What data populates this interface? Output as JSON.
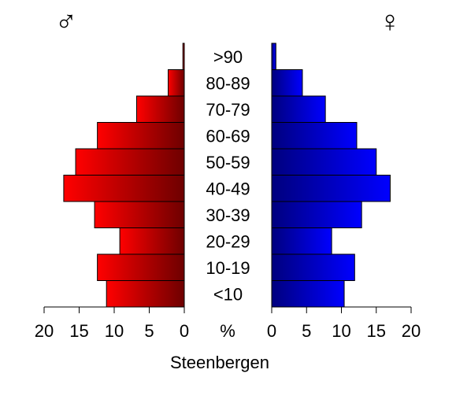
{
  "chart_data": {
    "type": "bar",
    "orientation": "horizontal",
    "layout": "population-pyramid",
    "title": "Steenbergen",
    "unit_label": "%",
    "male_symbol": "♂",
    "female_symbol": "♀",
    "categories": [
      "<10",
      "10-19",
      "20-29",
      "30-39",
      "40-49",
      "50-59",
      "60-69",
      "70-79",
      "80-89",
      ">90"
    ],
    "series": [
      {
        "name": "♂",
        "side": "left",
        "values": [
          11.1,
          12.4,
          9.2,
          12.8,
          17.2,
          15.5,
          12.4,
          6.8,
          2.3,
          0.2
        ]
      },
      {
        "name": "♀",
        "side": "right",
        "values": [
          10.4,
          11.9,
          8.6,
          12.9,
          17.0,
          15.0,
          12.2,
          7.7,
          4.4,
          0.6
        ]
      }
    ],
    "xlim": [
      0,
      20
    ],
    "ticks": [
      "20",
      "15",
      "10",
      "5",
      "0",
      "0",
      "5",
      "10",
      "15",
      "20"
    ],
    "colors": {
      "male_light": "#ff0000",
      "male_dark": "#6e0000",
      "female_light": "#0000ff",
      "female_dark": "#00007e",
      "outline": "#000000"
    },
    "grid": false
  }
}
